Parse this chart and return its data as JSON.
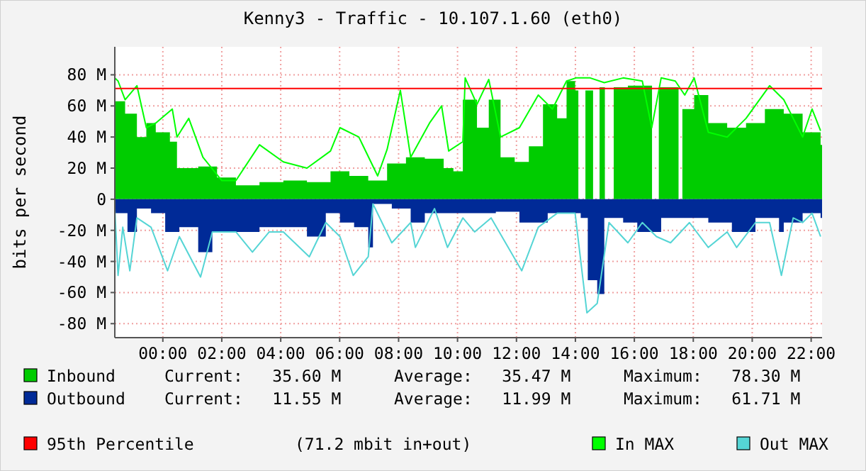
{
  "chart_data": {
    "type": "area",
    "title": "Kenny3 - Traffic - 10.107.1.60 (eth0)",
    "ylabel": "bits per second",
    "xlim": [
      -1.63,
      22.37
    ],
    "xticks": [
      {
        "value": 0,
        "label": "00:00"
      },
      {
        "value": 2,
        "label": "02:00"
      },
      {
        "value": 4,
        "label": "04:00"
      },
      {
        "value": 6,
        "label": "06:00"
      },
      {
        "value": 8,
        "label": "08:00"
      },
      {
        "value": 10,
        "label": "10:00"
      },
      {
        "value": 12,
        "label": "12:00"
      },
      {
        "value": 14,
        "label": "14:00"
      },
      {
        "value": 16,
        "label": "16:00"
      },
      {
        "value": 18,
        "label": "18:00"
      },
      {
        "value": 20,
        "label": "20:00"
      },
      {
        "value": 22,
        "label": "22:00"
      }
    ],
    "ylim": [
      -89,
      98
    ],
    "yticks": [
      {
        "value": -80,
        "label": "-80 M"
      },
      {
        "value": -60,
        "label": "-60 M"
      },
      {
        "value": -40,
        "label": "-40 M"
      },
      {
        "value": -20,
        "label": "-20 M"
      },
      0,
      {
        "value": 20,
        "label": "20 M"
      },
      {
        "value": 40,
        "label": "40 M"
      },
      {
        "value": 60,
        "label": "60 M"
      },
      {
        "value": 80,
        "label": "80 M"
      }
    ],
    "grid": true,
    "legend": "bottom",
    "series": [
      {
        "name": "Inbound",
        "color": "#00cc00",
        "x": [
          -1.63,
          -1.28,
          -0.88,
          -0.56,
          -0.24,
          0.24,
          0.48,
          1.2,
          1.84,
          2.48,
          3.28,
          4.09,
          4.89,
          5.69,
          6.33,
          6.97,
          7.61,
          8.25,
          8.89,
          9.53,
          9.86,
          10.18,
          10.66,
          11.06,
          11.46,
          11.94,
          12.42,
          12.9,
          13.38,
          13.7,
          13.99,
          14.1,
          14.34,
          14.6,
          14.82,
          15.0,
          15.3,
          15.78,
          16.27,
          16.6,
          16.83,
          17.39,
          17.5,
          17.63,
          18.03,
          18.51,
          19.15,
          19.79,
          20.43,
          21.07,
          21.71,
          22.32
        ],
        "values": [
          63,
          55,
          40,
          49,
          43,
          37,
          20,
          21,
          14,
          9,
          11,
          12,
          11,
          18,
          15,
          12,
          23,
          27,
          26,
          20,
          18,
          64,
          46,
          64,
          27,
          24,
          34,
          61,
          52,
          76,
          70,
          null,
          70,
          null,
          72,
          null,
          72,
          73,
          73,
          null,
          72,
          72,
          null,
          58,
          67,
          49,
          46,
          49,
          58,
          55,
          43,
          35
        ]
      },
      {
        "name": "Outbound",
        "color": "#002a97",
        "x": [
          -1.63,
          -1.2,
          -0.88,
          -0.4,
          0.08,
          0.56,
          1.2,
          1.68,
          2.48,
          3.28,
          4.09,
          4.89,
          5.53,
          6.01,
          6.49,
          6.97,
          7.13,
          7.77,
          8.41,
          8.89,
          9.53,
          9.86,
          10.5,
          11.3,
          12.1,
          13.06,
          13.7,
          14.18,
          14.42,
          14.74,
          14.98,
          15.62,
          16.1,
          16.91,
          17.71,
          18.51,
          19.31,
          20.11,
          20.91,
          21.07,
          21.71,
          22.32
        ],
        "values": [
          -9,
          -21,
          -6,
          -9,
          -21,
          -18,
          -34,
          -21,
          -21,
          -18,
          -18,
          -24,
          -9,
          -15,
          -18,
          -31,
          -3,
          -6,
          -15,
          -9,
          -9,
          -9,
          -9,
          -8,
          -15,
          -9,
          -9,
          -12,
          -52,
          -61,
          -12,
          -15,
          -21,
          -12,
          -12,
          -15,
          -21,
          -12,
          -21,
          -15,
          -9,
          -12
        ]
      },
      {
        "name": "In MAX",
        "type": "line",
        "color": "#00ff00",
        "x": [
          -1.63,
          -1.52,
          -1.28,
          -0.88,
          -0.56,
          -0.24,
          0.32,
          0.48,
          0.88,
          1.36,
          2.0,
          2.48,
          3.28,
          4.09,
          4.89,
          5.69,
          6.01,
          6.65,
          7.29,
          7.61,
          8.06,
          8.41,
          9.05,
          9.46,
          9.7,
          10.18,
          10.26,
          10.66,
          11.06,
          11.46,
          12.1,
          12.74,
          13.22,
          13.7,
          14.02,
          14.5,
          14.98,
          15.62,
          16.27,
          16.59,
          16.91,
          17.39,
          17.71,
          18.03,
          18.51,
          19.15,
          19.79,
          20.59,
          21.07,
          21.71,
          22.03,
          22.32
        ],
        "values": [
          78,
          76,
          64,
          73,
          46,
          49,
          58,
          40,
          52,
          27,
          12,
          12,
          35,
          24,
          20,
          31,
          46,
          40,
          15,
          32,
          70,
          27,
          49,
          60,
          31,
          37,
          78,
          61,
          77,
          40,
          46,
          67,
          58,
          76,
          78,
          78,
          75,
          78,
          76,
          46,
          78,
          76,
          67,
          78,
          43,
          40,
          52,
          73,
          64,
          40,
          58,
          44
        ]
      },
      {
        "name": "Out MAX",
        "type": "line",
        "color": "#55d5d5",
        "x": [
          -1.63,
          -1.52,
          -1.36,
          -1.12,
          -0.88,
          -0.4,
          0.16,
          0.56,
          1.28,
          1.68,
          2.48,
          3.04,
          3.61,
          4.09,
          4.97,
          5.53,
          6.01,
          6.46,
          6.97,
          7.13,
          7.77,
          8.41,
          8.57,
          9.22,
          9.66,
          10.18,
          10.58,
          11.14,
          12.18,
          12.74,
          13.38,
          13.99,
          14.39,
          14.74,
          15.14,
          15.78,
          16.27,
          16.75,
          17.23,
          17.87,
          18.51,
          19.15,
          19.47,
          20.11,
          20.59,
          20.99,
          21.39,
          21.71,
          22.03,
          22.32
        ],
        "values": [
          -6,
          -49,
          -18,
          -46,
          -12,
          -18,
          -46,
          -24,
          -50,
          -21,
          -21,
          -34,
          -21,
          -21,
          -37,
          -15,
          -24,
          -49,
          -37,
          -3,
          -28,
          -15,
          -31,
          -6,
          -31,
          -12,
          -21,
          -12,
          -46,
          -18,
          -9,
          -9,
          -73,
          -67,
          -15,
          -28,
          -15,
          -24,
          -28,
          -15,
          -31,
          -21,
          -31,
          -15,
          -15,
          -49,
          -12,
          -15,
          -9,
          -24
        ]
      }
    ],
    "ref_lines": [
      {
        "axis": "y",
        "value": 71.2,
        "label": "95th Percentile",
        "color": "#ff0000"
      }
    ],
    "annotations": [
      "Current:   35.60 M",
      "Average:   35.47 M",
      "Maximum:   78.30 M",
      "Current:   11.55 M",
      "Average:   11.99 M",
      "Maximum:   61.71 M",
      "(71.2 mbit in+out)"
    ]
  }
}
